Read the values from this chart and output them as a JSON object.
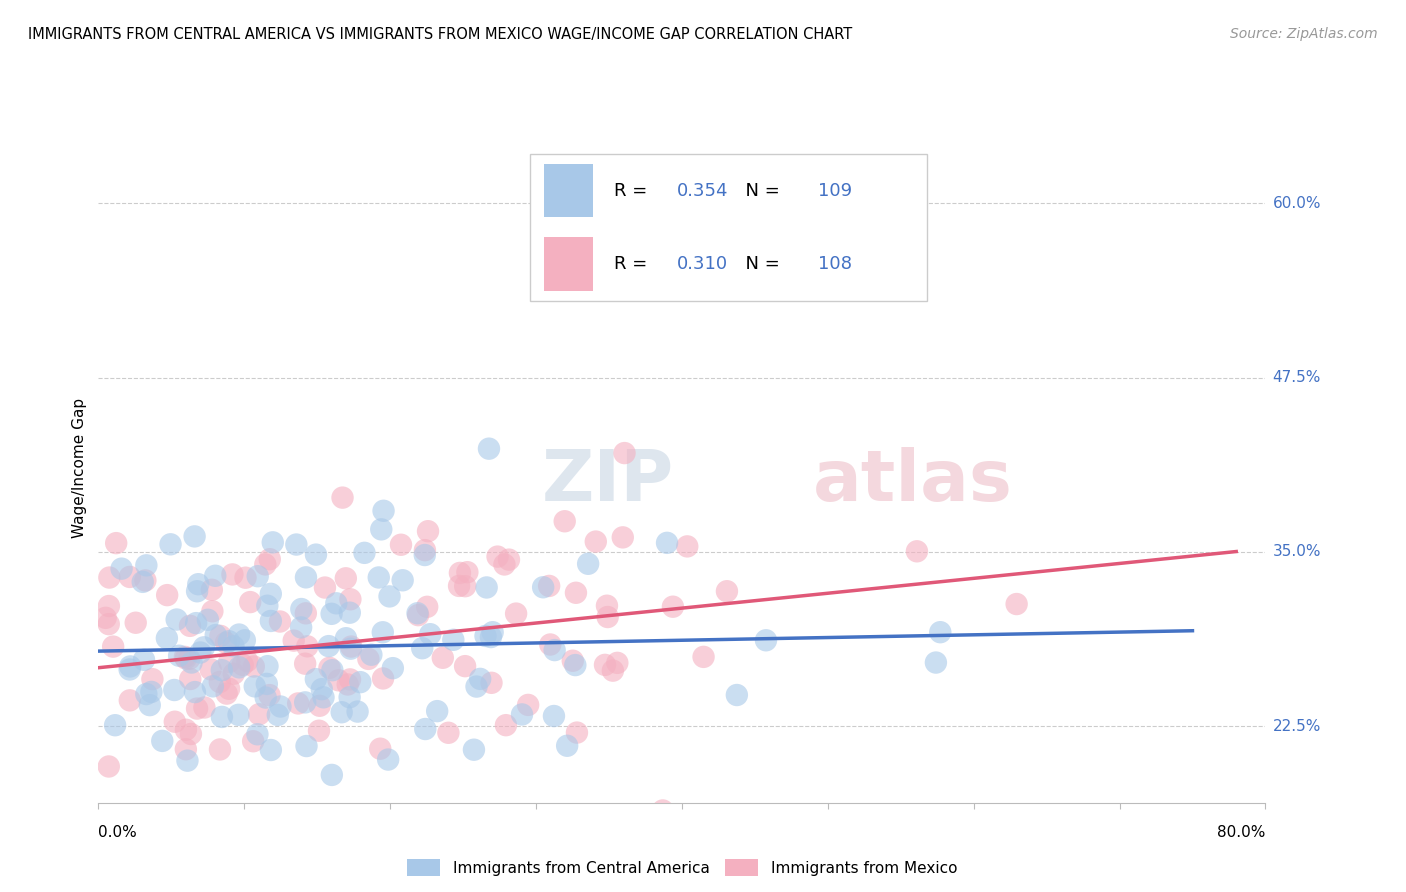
{
  "title": "IMMIGRANTS FROM CENTRAL AMERICA VS IMMIGRANTS FROM MEXICO WAGE/INCOME GAP CORRELATION CHART",
  "source": "Source: ZipAtlas.com",
  "ylabel": "Wage/Income Gap",
  "series1_label": "Immigrants from Central America",
  "series2_label": "Immigrants from Mexico",
  "series1_R": "0.354",
  "series1_N": "109",
  "series2_R": "0.310",
  "series2_N": "108",
  "series1_color": "#a8c8e8",
  "series2_color": "#f4b0c0",
  "series1_line_color": "#4472c4",
  "series2_line_color": "#e05878",
  "ytick_color": "#4472c4",
  "watermark_color": "#d0dce8",
  "watermark_color2": "#f0c8d0",
  "background_color": "#ffffff",
  "grid_color": "#cccccc",
  "xmin": 0.0,
  "xmax": 0.8,
  "ymin": 0.17,
  "ymax": 0.65,
  "ytick_vals": [
    0.225,
    0.35,
    0.475,
    0.6
  ],
  "ytick_labels": [
    "22.5%",
    "35.0%",
    "47.5%",
    "60.0%"
  ]
}
